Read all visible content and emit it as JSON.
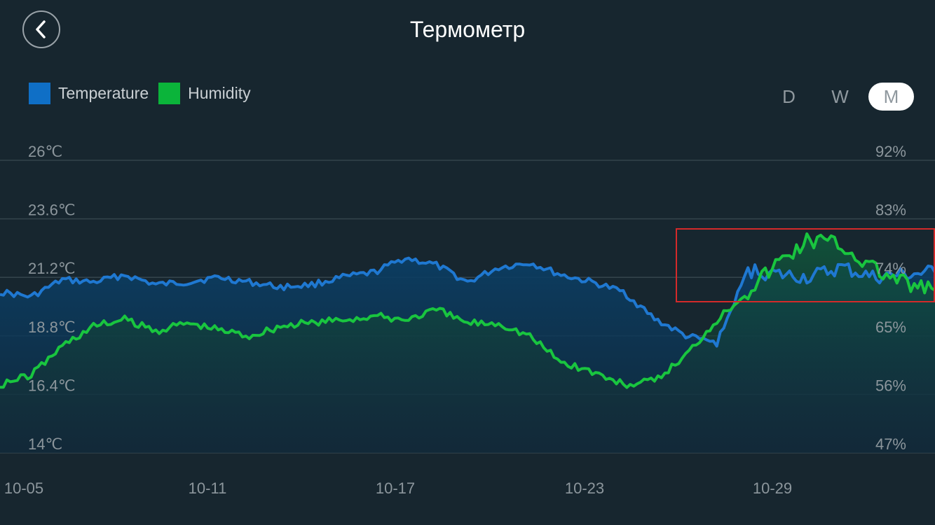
{
  "header": {
    "title": "Термометр"
  },
  "legend": {
    "items": [
      {
        "label": "Temperature",
        "color": "#0f6fc6"
      },
      {
        "label": "Humidity",
        "color": "#0bb43a"
      }
    ]
  },
  "range_tabs": {
    "items": [
      "D",
      "W",
      "M"
    ],
    "active": "M"
  },
  "colors": {
    "background": "#17262f",
    "grid": "#34444c",
    "temperature": "#1f78d1",
    "humidity": "#19c53f",
    "highlight_box": "#d42a2a"
  },
  "chart_data": {
    "type": "line",
    "x_ticks": [
      "10-05",
      "10-11",
      "10-17",
      "10-23",
      "10-29"
    ],
    "y_left_ticks": [
      "26℃",
      "23.6℃",
      "21.2℃",
      "18.8℃",
      "16.4℃",
      "14℃"
    ],
    "y_right_ticks": [
      "92%",
      "83%",
      "74%",
      "65%",
      "56%",
      "47%"
    ],
    "y_left_range": [
      14,
      26
    ],
    "y_right_range": [
      47,
      92
    ],
    "x_range": [
      "10-05",
      "11-04"
    ],
    "grid": true,
    "legend_position": "top-left",
    "series": [
      {
        "name": "Temperature",
        "axis": "left",
        "x": [
          "10-05",
          "10-06",
          "10-07",
          "10-08",
          "10-09",
          "10-10",
          "10-11",
          "10-12",
          "10-13",
          "10-14",
          "10-15",
          "10-16",
          "10-17",
          "10-18",
          "10-19",
          "10-20",
          "10-21",
          "10-22",
          "10-23",
          "10-24",
          "10-25",
          "10-26",
          "10-27",
          "10-28",
          "10-29",
          "10-30",
          "10-31",
          "11-01",
          "11-02",
          "11-03",
          "11-04"
        ],
        "values": [
          20.6,
          20.4,
          21.1,
          21.0,
          21.3,
          20.9,
          21.0,
          21.2,
          21.0,
          20.8,
          20.9,
          21.2,
          21.4,
          22.0,
          21.7,
          21.0,
          21.6,
          21.8,
          21.3,
          21.0,
          20.6,
          19.5,
          18.8,
          18.5,
          21.5,
          21.3,
          21.2,
          21.6,
          21.2,
          21.3,
          21.4
        ]
      },
      {
        "name": "Humidity",
        "axis": "right",
        "x": [
          "10-05",
          "10-06",
          "10-07",
          "10-08",
          "10-09",
          "10-10",
          "10-11",
          "10-12",
          "10-13",
          "10-14",
          "10-15",
          "10-16",
          "10-17",
          "10-18",
          "10-19",
          "10-20",
          "10-21",
          "10-22",
          "10-23",
          "10-24",
          "10-25",
          "10-26",
          "10-27",
          "10-28",
          "10-29",
          "10-30",
          "10-31",
          "11-01",
          "11-02",
          "11-03",
          "11-04"
        ],
        "values": [
          57.5,
          59.0,
          63.5,
          66.5,
          67.5,
          65.8,
          67.0,
          66.0,
          65.0,
          66.5,
          67.0,
          67.5,
          68.0,
          67.5,
          69.0,
          67.0,
          67.0,
          65.0,
          61.0,
          59.5,
          57.5,
          58.0,
          62.0,
          67.5,
          72.0,
          76.5,
          80.0,
          79.0,
          75.5,
          73.0,
          72.0
        ]
      }
    ]
  }
}
